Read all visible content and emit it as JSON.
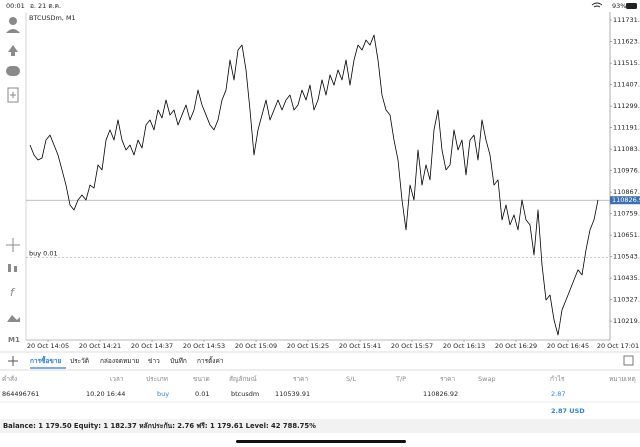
{
  "status_bar": {
    "time": "00:01",
    "date": "อ. 21 ต.ค.",
    "battery": "93%"
  },
  "chart_data": {
    "type": "line",
    "title": "BTCUSDm, M1",
    "timeframe": "M1",
    "color": "#000000",
    "values": [
      111104,
      111054,
      111029,
      111039,
      111129,
      111154,
      111104,
      111054,
      110979,
      110903,
      110803,
      110778,
      110828,
      110853,
      110828,
      110903,
      110888,
      111004,
      110979,
      111129,
      111180,
      111129,
      111230,
      111129,
      111079,
      111104,
      111054,
      111129,
      111089,
      111205,
      111230,
      111180,
      111280,
      111240,
      111330,
      111255,
      111280,
      111205,
      111255,
      111305,
      111230,
      111280,
      111380,
      111305,
      111255,
      111205,
      111180,
      111230,
      111330,
      111380,
      111531,
      111431,
      111581,
      111606,
      111481,
      111280,
      111054,
      111180,
      111255,
      111330,
      111230,
      111280,
      111330,
      111280,
      111330,
      111355,
      111280,
      111305,
      111380,
      111330,
      111405,
      111280,
      111330,
      111431,
      111355,
      111456,
      111405,
      111481,
      111431,
      111531,
      111405,
      111531,
      111606,
      111581,
      111631,
      111606,
      111656,
      111531,
      111355,
      111280,
      111255,
      111129,
      111029,
      110828,
      110678,
      110903,
      110828,
      111079,
      110903,
      111004,
      110929,
      111180,
      111280,
      111079,
      110979,
      111004,
      111180,
      111079,
      111129,
      110954,
      111129,
      111154,
      111029,
      111230,
      111129,
      111054,
      110903,
      110929,
      110728,
      110803,
      110703,
      110753,
      110678,
      110828,
      110728,
      110703,
      110552,
      110778,
      110502,
      110326,
      110351,
      110226,
      110150,
      110276,
      110326,
      110376,
      110427,
      110477,
      110452,
      110577,
      110678,
      110728,
      110828
    ],
    "xlim": [
      -1,
      145
    ],
    "xticks": [
      {
        "value": 4.5,
        "label": "20 Oct 14:05"
      },
      {
        "value": 17.5,
        "label": "20 Oct 14:21"
      },
      {
        "value": 30.5,
        "label": "20 Oct 14:37"
      },
      {
        "value": 43.5,
        "label": "20 Oct 14:53"
      },
      {
        "value": 56.5,
        "label": "20 Oct 15:09"
      },
      {
        "value": 69.5,
        "label": "20 Oct 15:25"
      },
      {
        "value": 82.5,
        "label": "20 Oct 15:41"
      },
      {
        "value": 95.5,
        "label": "20 Oct 15:57"
      },
      {
        "value": 108.5,
        "label": "20 Oct 16:13"
      },
      {
        "value": 121.5,
        "label": "20 Oct 16:29"
      },
      {
        "value": 134.5,
        "label": "20 Oct 16:45"
      },
      {
        "value": 147.5,
        "label": "20 Oct 17:01"
      }
    ],
    "ylim": [
      110125,
      111772
    ],
    "yticks": [
      {
        "value": 111731.7,
        "label": "111731.70"
      },
      {
        "value": 111623.1,
        "label": "111623.10"
      },
      111515.15,
      {
        "value": 111407.2,
        "label": "111407.20"
      },
      111299.25,
      {
        "value": 111191.3,
        "label": "111191.30"
      },
      111083.35,
      {
        "value": 110976.4,
        "label": "110976.40"
      },
      110867.45,
      {
        "value": 110759.5,
        "label": "110759.50"
      },
      110651.55,
      {
        "value": 110543.6,
        "label": "110543.60"
      },
      110435.65,
      {
        "value": 110327.7,
        "label": "110327.70"
      },
      110219.75
    ],
    "price_line": 110826.92,
    "order_line": {
      "label": "buy 0.01",
      "value": 110539.91
    }
  },
  "tabs": [
    "การซื้อขาย",
    "ประวัติ",
    "กล่องจดหมาย",
    "ข่าว",
    "บันทึก",
    "การตั้งค่า"
  ],
  "table": {
    "header": [
      "คำสั่ง",
      "เวลา",
      "ประเภท",
      "ขนาด",
      "สัญลักษณ์",
      "ราคา",
      "S/L",
      "T/P",
      "ราคา",
      "Swap",
      "กำไร",
      "หมายเหตุ"
    ],
    "row": {
      "order": "864496761",
      "time": "10.20 16:44",
      "type": "buy",
      "size": "0.01",
      "symbol": "btcusdm",
      "price": "110539.91",
      "current_price": "110826.92",
      "profit": "2.87"
    },
    "total": "2.87 USD"
  },
  "balance": "Balance: 1 179.50 Equity: 1 182.37 หลักประกัน: 2.76 ฟรี: 1 179.61 Level: 42 788.75%"
}
